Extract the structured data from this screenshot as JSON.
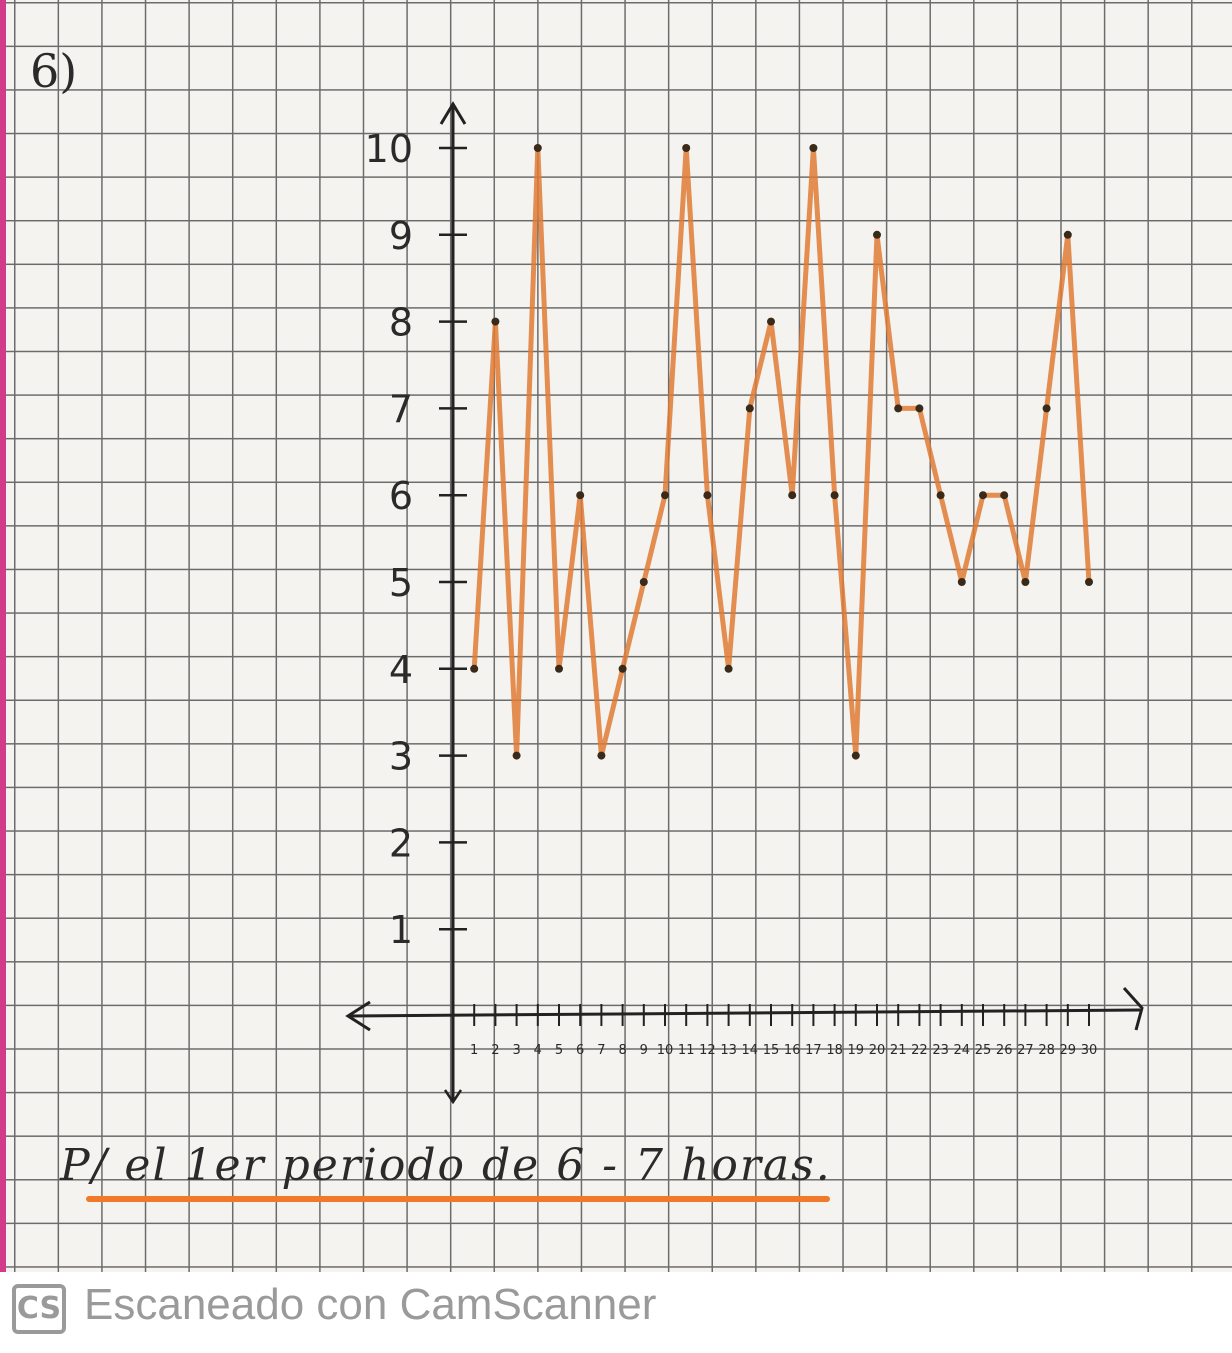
{
  "exercise_label": "6)",
  "caption": "P/ el 1er periodo de 6 - 7 horas.",
  "footer": {
    "logo": "CS",
    "text": "Escaneado con CamScanner"
  },
  "colors": {
    "line": "#e07a34",
    "point": "#3a2a1a",
    "axis": "#222222",
    "underline": "#f07a2a"
  },
  "chart_data": {
    "type": "line",
    "title": "",
    "xlabel": "",
    "ylabel": "",
    "xlim": [
      0,
      30
    ],
    "ylim": [
      0,
      10
    ],
    "grid": true,
    "x_ticks": [
      "1",
      "2",
      "3",
      "4",
      "5",
      "6",
      "7",
      "8",
      "9",
      "10",
      "11",
      "12",
      "13",
      "14",
      "15",
      "16",
      "17",
      "18",
      "19",
      "20",
      "21",
      "22",
      "23",
      "24",
      "25",
      "26",
      "27",
      "28",
      "29",
      "30"
    ],
    "y_ticks": [
      "1",
      "2",
      "3",
      "4",
      "5",
      "6",
      "7",
      "8",
      "9",
      "10"
    ],
    "series": [
      {
        "x": [
          1,
          2,
          3,
          4,
          5,
          6,
          7,
          8,
          9,
          10,
          11,
          12,
          13,
          14,
          15,
          16,
          17,
          18,
          19,
          20,
          21,
          22,
          23,
          24,
          25,
          26,
          27,
          28,
          29,
          30
        ],
        "values": [
          4,
          8,
          3,
          10,
          4,
          6,
          3,
          4,
          5,
          6,
          10,
          6,
          4,
          7,
          8,
          6,
          10,
          6,
          3,
          9,
          7,
          7,
          6,
          5,
          6,
          6,
          5,
          7,
          9,
          5
        ]
      }
    ]
  }
}
